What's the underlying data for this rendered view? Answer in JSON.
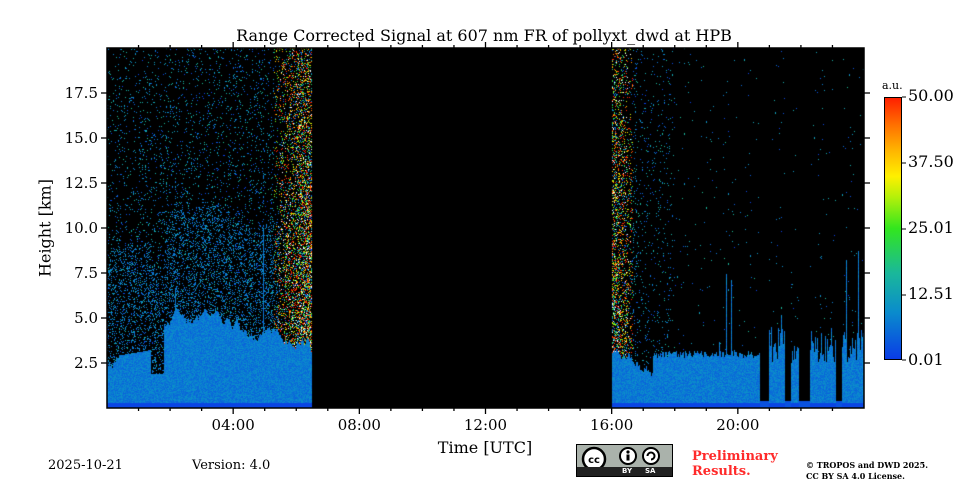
{
  "chart_data": {
    "type": "heatmap",
    "title": "Range Corrected Signal at 607 nm FR of pollyxt_dwd at HPB",
    "xlabel": "Time [UTC]",
    "ylabel": "Height [km]",
    "xlim_hours": [
      0,
      24
    ],
    "ylim_km": [
      0,
      20
    ],
    "x_ticks": [
      {
        "value": 4,
        "label": "04:00"
      },
      {
        "value": 8,
        "label": "08:00"
      },
      {
        "value": 12,
        "label": "12:00"
      },
      {
        "value": 16,
        "label": "16:00"
      },
      {
        "value": 20,
        "label": "20:00"
      }
    ],
    "y_ticks": [
      {
        "value": 2.5,
        "label": "2.5"
      },
      {
        "value": 5.0,
        "label": "5.0"
      },
      {
        "value": 7.5,
        "label": "7.5"
      },
      {
        "value": 10.0,
        "label": "10.0"
      },
      {
        "value": 12.5,
        "label": "12.5"
      },
      {
        "value": 15.0,
        "label": "15.0"
      },
      {
        "value": 17.5,
        "label": "17.5"
      }
    ],
    "no_data_interval_hours": [
      6.5,
      16.0
    ],
    "colorbar": {
      "unit": "a.u.",
      "range": [
        0.01,
        50.0
      ],
      "ticks": [
        "50.00",
        "37.50",
        "25.01",
        "12.51",
        "0.01"
      ],
      "colormap": "jet"
    }
  },
  "footer": {
    "date": "2025-10-21",
    "version": "Version: 4.0",
    "license_badge": {
      "cc": "cc",
      "by": "BY",
      "sa": "SA"
    },
    "preliminary": [
      "Preliminary",
      "Results."
    ],
    "copyright": [
      "© TROPOS and DWD 2025.",
      "CC BY SA 4.0 License."
    ]
  }
}
